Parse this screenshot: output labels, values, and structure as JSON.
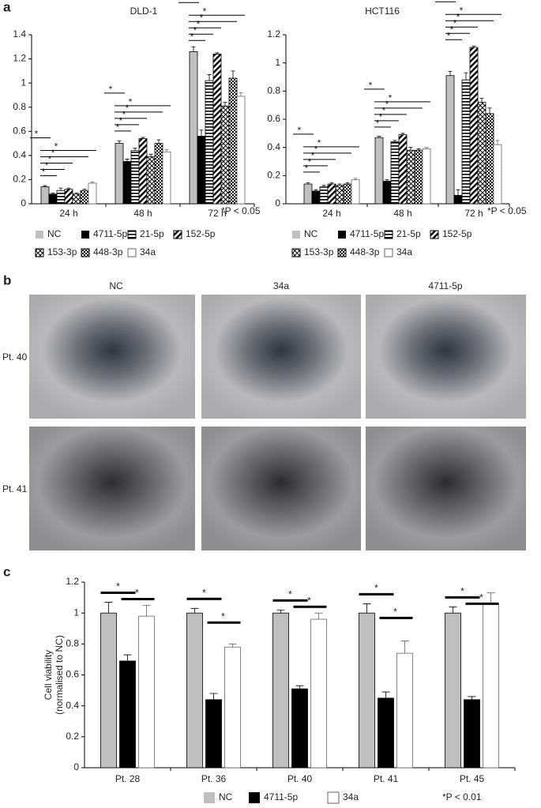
{
  "chart_data": [
    {
      "type": "bar",
      "panel": "a",
      "title": "DLD-1",
      "categories": [
        "24 h",
        "48 h",
        "72 h"
      ],
      "series": [
        {
          "name": "NC",
          "color": "#c0c0c0",
          "pattern": "solid",
          "values": [
            0.14,
            0.5,
            1.26
          ],
          "errors": [
            0.01,
            0.02,
            0.04
          ]
        },
        {
          "name": "4711-5p",
          "color": "#000000",
          "pattern": "solid",
          "values": [
            0.08,
            0.35,
            0.56
          ],
          "errors": [
            0.01,
            0.02,
            0.05
          ]
        },
        {
          "name": "21-5p",
          "color": "#000000",
          "pattern": "horizontal",
          "values": [
            0.11,
            0.44,
            1.02
          ],
          "errors": [
            0.02,
            0.02,
            0.05
          ]
        },
        {
          "name": "152-5p",
          "color": "#000000",
          "pattern": "diagonal",
          "values": [
            0.12,
            0.54,
            1.24
          ],
          "errors": [
            0.01,
            0.01,
            0.01
          ]
        },
        {
          "name": "153-3p",
          "color": "#000000",
          "pattern": "crosshatch",
          "values": [
            0.08,
            0.39,
            0.81
          ],
          "errors": [
            0.01,
            0.02,
            0.03
          ]
        },
        {
          "name": "448-3p",
          "color": "#000000",
          "pattern": "checker",
          "values": [
            0.11,
            0.5,
            1.04
          ],
          "errors": [
            0.01,
            0.03,
            0.06
          ]
        },
        {
          "name": "34a",
          "color": "#ffffff",
          "pattern": "solid",
          "values": [
            0.17,
            0.43,
            0.89
          ],
          "errors": [
            0.01,
            0.02,
            0.03
          ]
        }
      ],
      "ylim": [
        0,
        1.4
      ],
      "yticks": [
        0,
        0.2,
        0.4,
        0.6,
        0.8,
        1,
        1.2,
        1.4
      ],
      "significance": "*",
      "note": "*P < 0.05"
    },
    {
      "type": "bar",
      "title": "HCT116",
      "categories": [
        "24 h",
        "48 h",
        "72 h"
      ],
      "series": [
        {
          "name": "NC",
          "color": "#c0c0c0",
          "pattern": "solid",
          "values": [
            0.14,
            0.47,
            0.91
          ],
          "errors": [
            0.01,
            0.01,
            0.03
          ]
        },
        {
          "name": "4711-5p",
          "color": "#000000",
          "pattern": "solid",
          "values": [
            0.09,
            0.16,
            0.06
          ],
          "errors": [
            0.01,
            0.01,
            0.04
          ]
        },
        {
          "name": "21-5p",
          "color": "#000000",
          "pattern": "horizontal",
          "values": [
            0.12,
            0.44,
            0.88
          ],
          "errors": [
            0.01,
            0.01,
            0.05
          ]
        },
        {
          "name": "152-5p",
          "color": "#000000",
          "pattern": "diagonal",
          "values": [
            0.14,
            0.49,
            1.11
          ],
          "errors": [
            0.01,
            0.01,
            0.01
          ]
        },
        {
          "name": "153-3p",
          "color": "#000000",
          "pattern": "crosshatch",
          "values": [
            0.13,
            0.38,
            0.72
          ],
          "errors": [
            0.01,
            0.02,
            0.03
          ]
        },
        {
          "name": "448-3p",
          "color": "#000000",
          "pattern": "checker",
          "values": [
            0.14,
            0.38,
            0.64
          ],
          "errors": [
            0.01,
            0.01,
            0.04
          ]
        },
        {
          "name": "34a",
          "color": "#ffffff",
          "pattern": "solid",
          "values": [
            0.17,
            0.39,
            0.42
          ],
          "errors": [
            0.01,
            0.01,
            0.03
          ]
        }
      ],
      "ylim": [
        0,
        1.2
      ],
      "yticks": [
        0,
        0.2,
        0.4,
        0.6,
        0.8,
        1,
        1.2
      ],
      "significance": "*",
      "note": "*P < 0.05"
    },
    {
      "type": "bar",
      "panel": "c",
      "ylabel": [
        "Cell viability",
        "(normalised to NC)"
      ],
      "categories": [
        "Pt. 28",
        "Pt. 36",
        "Pt. 40",
        "Pt. 41",
        "Pt. 45"
      ],
      "series": [
        {
          "name": "NC",
          "color": "#bfbfbf",
          "pattern": "solid",
          "values": [
            1,
            1,
            1,
            1,
            1
          ],
          "errors": [
            0.07,
            0.03,
            0.02,
            0.06,
            0.04
          ]
        },
        {
          "name": "4711-5p",
          "color": "#000000",
          "pattern": "solid",
          "values": [
            0.69,
            0.44,
            0.51,
            0.45,
            0.44
          ],
          "errors": [
            0.04,
            0.04,
            0.02,
            0.04,
            0.02
          ]
        },
        {
          "name": "34a",
          "color": "#ffffff",
          "pattern": "solid",
          "values": [
            0.98,
            0.78,
            0.96,
            0.74,
            1.06
          ],
          "errors": [
            0.07,
            0.02,
            0.04,
            0.08,
            0.07
          ]
        }
      ],
      "ylim": [
        0,
        1.2
      ],
      "yticks": [
        0,
        0.2,
        0.4,
        0.6,
        0.8,
        1,
        1.2
      ],
      "significance": "*",
      "note": "*P < 0.01"
    }
  ],
  "images": {
    "panel": "b",
    "columns": [
      "NC",
      "34a",
      "4711-5p"
    ],
    "rows": [
      "Pt. 40",
      "Pt. 41"
    ]
  }
}
